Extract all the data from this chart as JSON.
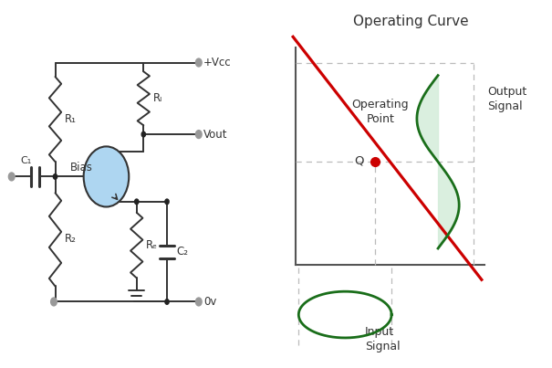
{
  "title": "Operating Curve",
  "bg_color": "#ffffff",
  "line_color_red": "#cc0000",
  "line_color_green": "#1a6e1a",
  "fill_color_green": "#d4edda",
  "circuit_line_color": "#333333",
  "transistor_fill": "#aed6f1",
  "dashed_color": "#bbbbbb",
  "label_r1": "R₁",
  "label_r2": "R₂",
  "label_rl": "Rₗ",
  "label_re": "Rₑ",
  "label_c1": "C₁",
  "label_c2": "C₂",
  "label_bias": "Bias",
  "label_vcc": "+Vcc",
  "label_vout": "Vout",
  "label_0v": "0v"
}
